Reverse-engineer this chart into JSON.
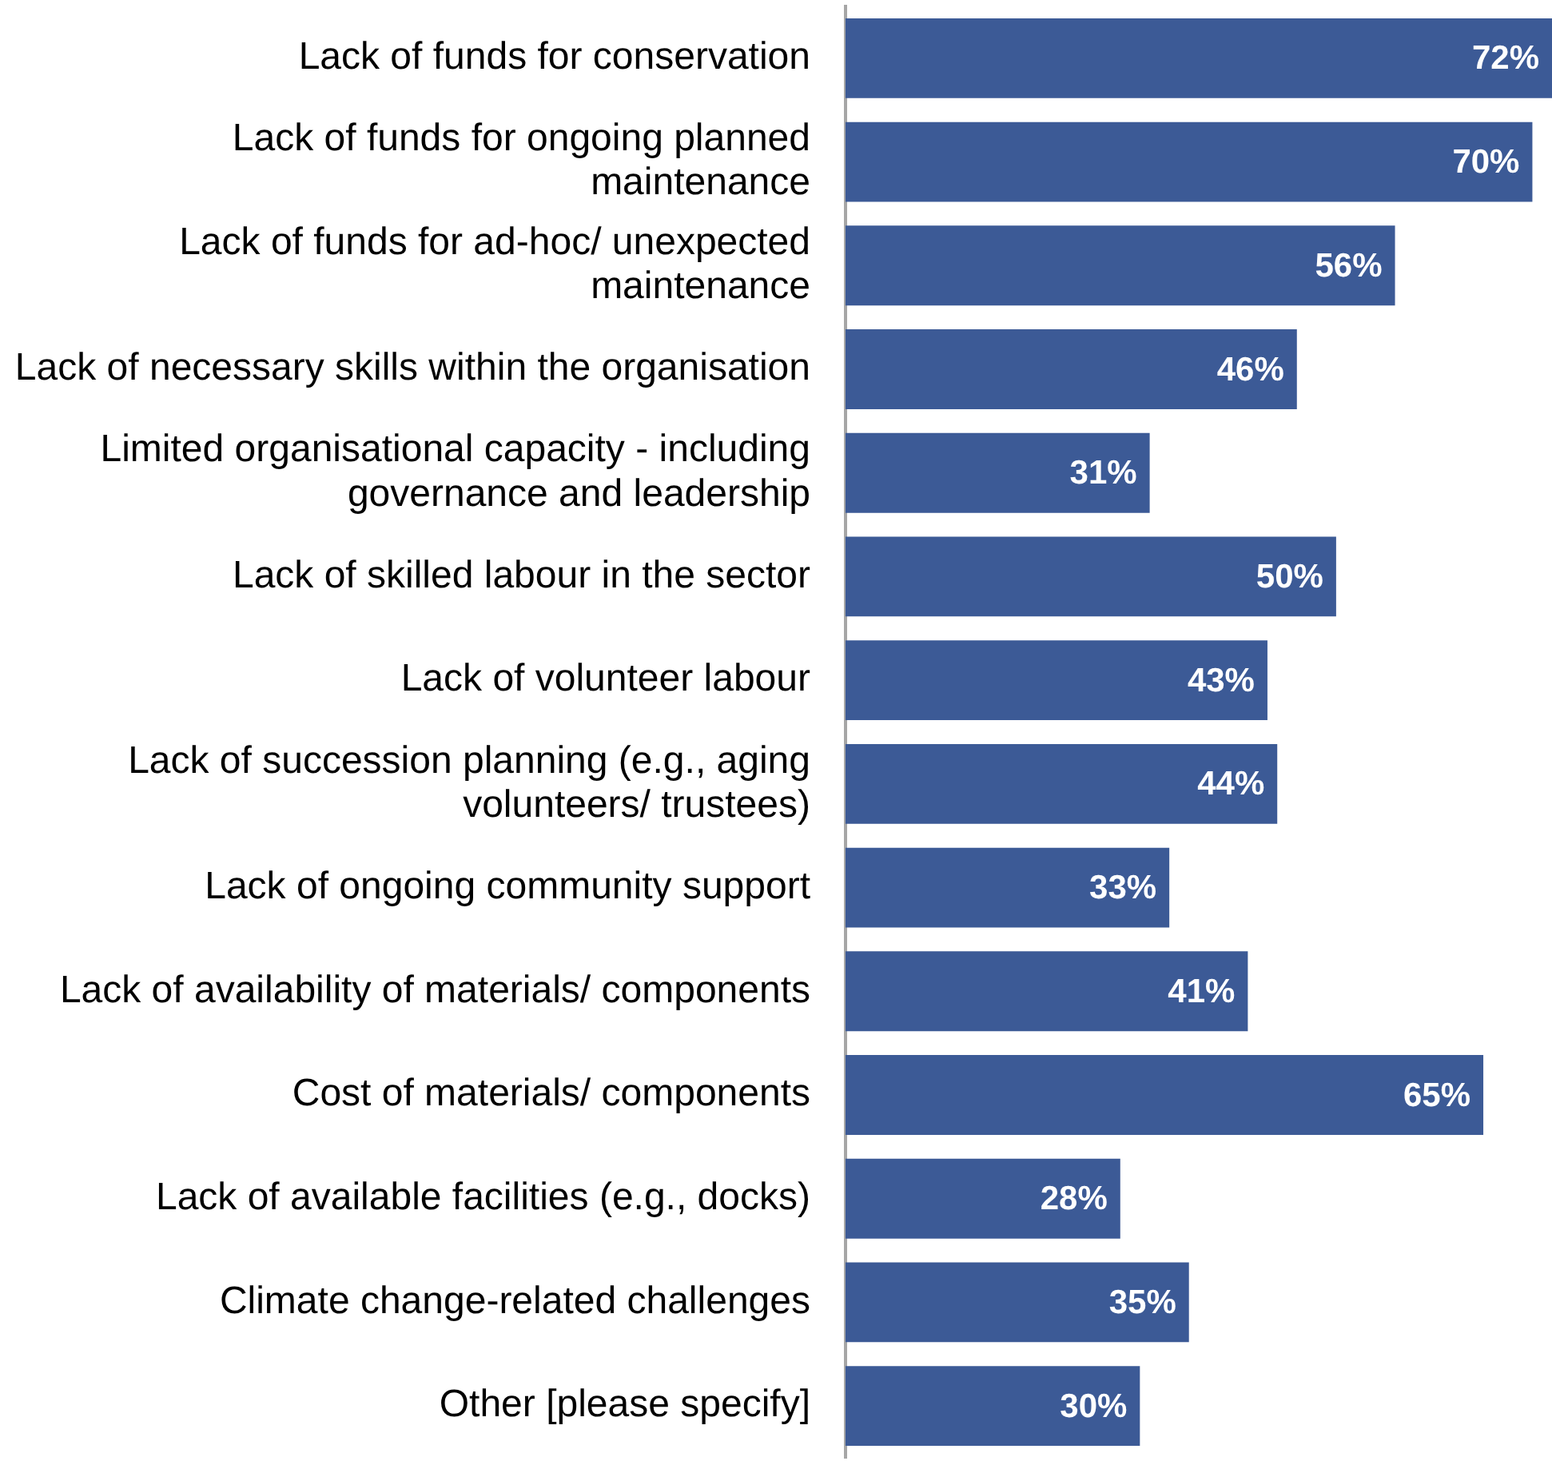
{
  "chart_data": {
    "type": "bar",
    "orientation": "horizontal",
    "categories": [
      "Lack of funds for conservation",
      "Lack of funds for ongoing planned maintenance",
      "Lack of funds for ad-hoc/ unexpected maintenance",
      "Lack of necessary skills within the organisation",
      "Limited organisational capacity - including governance and leadership",
      "Lack of skilled labour in the sector",
      "Lack of volunteer labour",
      "Lack of succession planning (e.g., aging volunteers/ trustees)",
      "Lack of ongoing community support",
      "Lack of availability of materials/ components",
      "Cost of materials/ components",
      "Lack of available facilities (e.g., docks)",
      "Climate change-related challenges",
      "Other [please specify]"
    ],
    "values": [
      72,
      70,
      56,
      46,
      31,
      50,
      43,
      44,
      33,
      41,
      65,
      28,
      35,
      30
    ],
    "value_labels": [
      "72%",
      "70%",
      "56%",
      "46%",
      "31%",
      "50%",
      "43%",
      "44%",
      "33%",
      "41%",
      "65%",
      "28%",
      "35%",
      "30%"
    ],
    "color": "#3c5a96",
    "xlim": [
      0,
      72
    ],
    "tick_labels": "y",
    "legend": false
  }
}
